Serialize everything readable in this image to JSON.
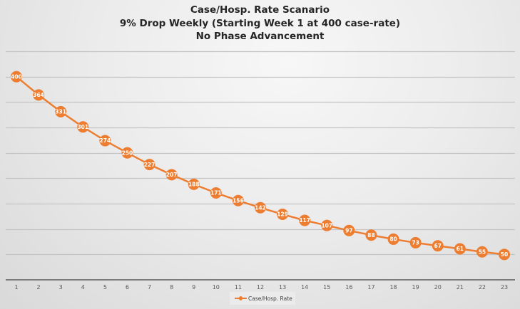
{
  "chart_data": {
    "type": "line",
    "title": "Case/Hosp. Rate Scanario",
    "subtitle_lines": [
      "9% Drop Weekly  (Starting Week 1 at 400 case-rate)",
      "No Phase Advancement"
    ],
    "xlabel": "",
    "ylabel": "",
    "categories": [
      "1",
      "2",
      "3",
      "4",
      "5",
      "6",
      "7",
      "8",
      "9",
      "10",
      "11",
      "12",
      "13",
      "14",
      "15",
      "16",
      "17",
      "18",
      "19",
      "20",
      "21",
      "22",
      "23"
    ],
    "series": [
      {
        "name": "Case/Hosp. Rate",
        "color": "#ed7d31",
        "values": [
          400,
          364,
          331,
          301,
          274,
          250,
          227,
          207,
          188,
          171,
          156,
          142,
          129,
          117,
          107,
          97,
          88,
          80,
          73,
          67,
          61,
          55,
          50
        ]
      }
    ],
    "ylim": [
      0,
      450
    ],
    "y_grid_step": 50,
    "grid": true,
    "y_tick_labels_visible": false,
    "data_labels": true,
    "legend_position": "bottom"
  }
}
